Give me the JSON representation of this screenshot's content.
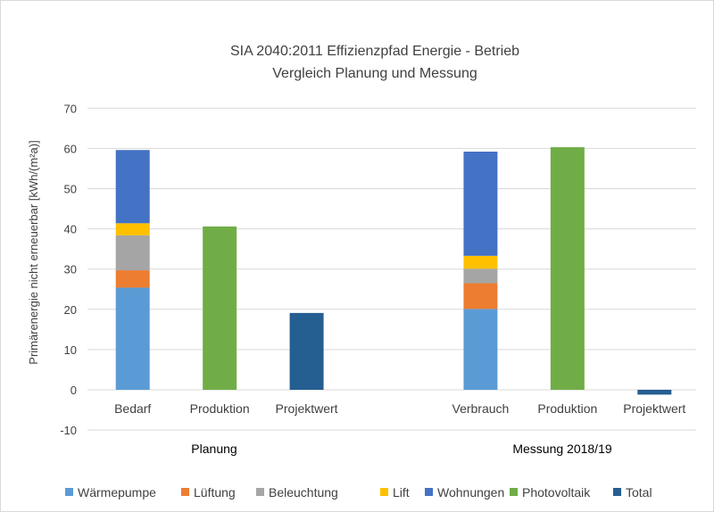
{
  "chart_data": {
    "type": "bar",
    "stacked": true,
    "title": "SIA 2040:2011  Effizienzpfad Energie - Betrieb",
    "subtitle": "Vergleich  Planung und Messung",
    "ylabel": "Primärenergie nicht erneuerbar  [kWh/(m²a)]",
    "xlabel": "",
    "ylim": [
      -10,
      70
    ],
    "yticks": [
      -10,
      0,
      10,
      20,
      30,
      40,
      50,
      60,
      70
    ],
    "grid": true,
    "legend_position": "bottom",
    "categories": [
      "Bedarf",
      "Produktion",
      "Projektwert",
      "",
      "Verbrauch",
      "Produktion",
      "Projektwert"
    ],
    "groups": [
      {
        "label": "Planung",
        "categories": [
          "Bedarf",
          "Produktion",
          "Projektwert"
        ]
      },
      {
        "label": "Messung 2018/19",
        "categories": [
          "Verbrauch",
          "Produktion",
          "Projektwert"
        ]
      }
    ],
    "series": [
      {
        "name": "Wärmepumpe",
        "color": "#5b9bd5",
        "values": [
          25.4,
          0,
          0,
          0,
          20.1,
          0,
          0
        ]
      },
      {
        "name": "Lüftung",
        "color": "#ed7d31",
        "values": [
          4.3,
          0,
          0,
          0,
          6.4,
          0,
          0
        ]
      },
      {
        "name": "Beleuchtung",
        "color": "#a5a5a5",
        "values": [
          8.7,
          0,
          0,
          0,
          3.6,
          0,
          0
        ]
      },
      {
        "name": "Lift",
        "color": "#ffc000",
        "values": [
          3.0,
          0,
          0,
          0,
          3.2,
          0,
          0
        ]
      },
      {
        "name": "Wohnungen",
        "color": "#4472c4",
        "values": [
          18.2,
          0,
          0,
          0,
          25.9,
          0,
          0
        ]
      },
      {
        "name": "Photovoltaik",
        "color": "#70ad47",
        "values": [
          0,
          40.6,
          0,
          0,
          0,
          60.3,
          0
        ]
      },
      {
        "name": "Total",
        "color": "#255e91",
        "values": [
          0,
          0,
          19.1,
          0,
          0,
          0,
          -1.2
        ]
      }
    ]
  }
}
